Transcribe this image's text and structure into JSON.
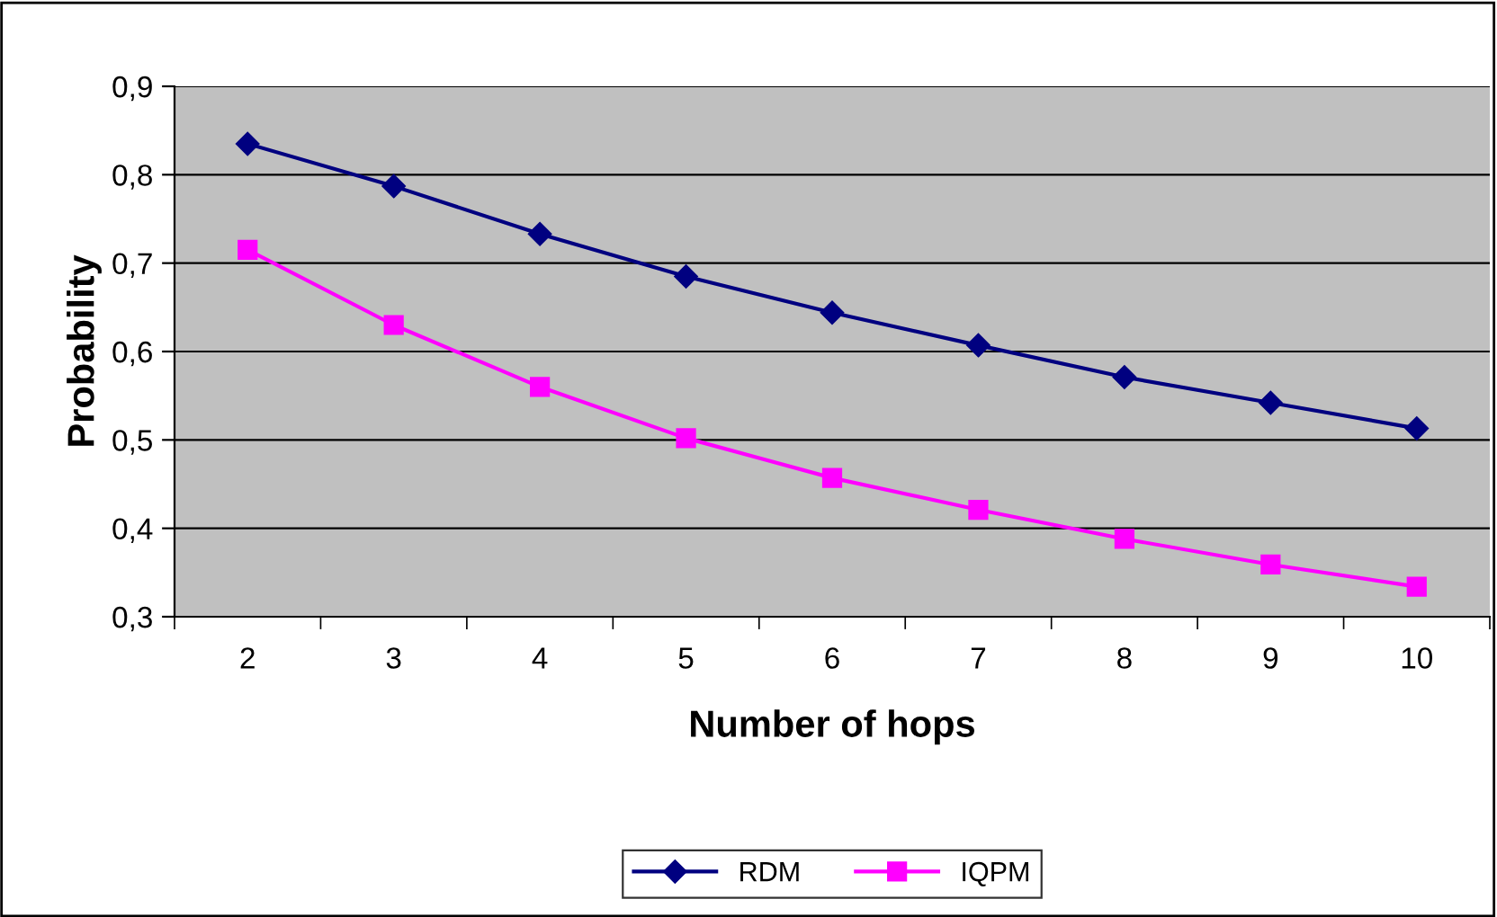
{
  "chart_data": {
    "type": "line",
    "xlabel": "Number of hops",
    "ylabel": "Probability",
    "categories": [
      "2",
      "3",
      "4",
      "5",
      "6",
      "7",
      "8",
      "9",
      "10"
    ],
    "series": [
      {
        "name": "RDM",
        "color": "#000080",
        "marker": "diamond",
        "values": [
          0.835,
          0.787,
          0.733,
          0.685,
          0.644,
          0.607,
          0.571,
          0.542,
          0.513
        ]
      },
      {
        "name": "IQPM",
        "color": "#ff00ff",
        "marker": "square",
        "values": [
          0.715,
          0.63,
          0.56,
          0.502,
          0.457,
          0.421,
          0.388,
          0.359,
          0.334
        ]
      }
    ],
    "ylim": [
      0.3,
      0.9
    ],
    "yticks": [
      {
        "value": 0.3,
        "label": "0,3"
      },
      {
        "value": 0.4,
        "label": "0,4"
      },
      {
        "value": 0.5,
        "label": "0,5"
      },
      {
        "value": 0.6,
        "label": "0,6"
      },
      {
        "value": 0.7,
        "label": "0,7"
      },
      {
        "value": 0.8,
        "label": "0,8"
      },
      {
        "value": 0.9,
        "label": "0,9"
      }
    ],
    "grid": "y",
    "legend": "bottom",
    "line_style": "solid"
  }
}
